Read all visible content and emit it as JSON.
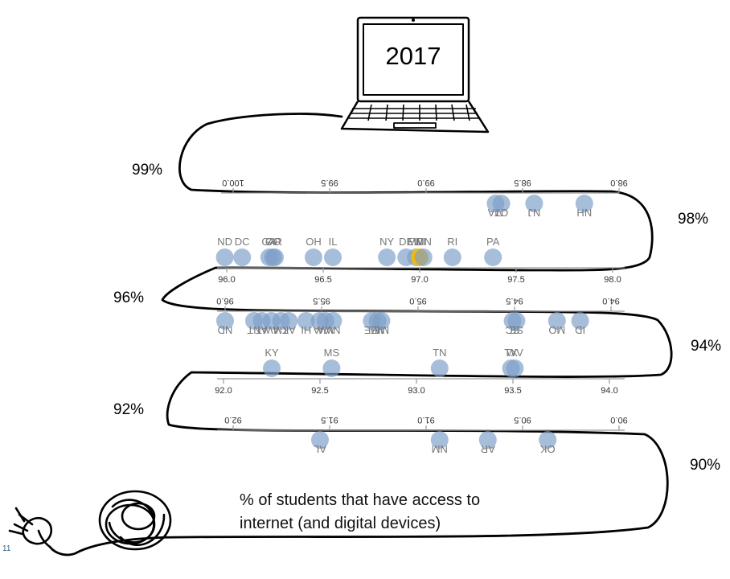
{
  "year": "2017",
  "caption": "% of students that have access to internet (and digital devices)",
  "slide_number": "11",
  "band_labels": [
    "99%",
    "98%",
    "96%",
    "94%",
    "92%",
    "90%"
  ],
  "colors": {
    "dot": "#7d9fc9",
    "dot_highlight": "#f5b800",
    "axis": "#999999",
    "label": "#777777",
    "path": "#000000"
  },
  "chart_data": {
    "type": "scatter",
    "title": "",
    "xlabel": "% of students that have access to internet (and digital devices)",
    "ylabel": "",
    "bands": [
      {
        "range": [
          98.0,
          100.0
        ],
        "flipped": true,
        "ticks": [
          100.0,
          99.5,
          99.0,
          98.5,
          98.0
        ],
        "tick_labels": [
          "100.0",
          "99.5",
          "99.0",
          "98.5",
          "98.0"
        ],
        "points": [
          {
            "label": "MA",
            "value": 98.64
          },
          {
            "label": "CT",
            "value": 98.61
          },
          {
            "label": "NJ",
            "value": 98.44
          },
          {
            "label": "NH",
            "value": 98.18
          }
        ]
      },
      {
        "range": [
          96.0,
          98.0
        ],
        "flipped": false,
        "ticks": [
          96.0,
          96.5,
          97.0,
          97.5,
          98.0
        ],
        "tick_labels": [
          "96.0",
          "96.5",
          "97.0",
          "97.5",
          "98.0"
        ],
        "points": [
          {
            "label": "ND",
            "value": 95.99
          },
          {
            "label": "DC",
            "value": 96.08
          },
          {
            "label": "GA",
            "value": 96.22
          },
          {
            "label": "CO",
            "value": 96.24
          },
          {
            "label": "AR",
            "value": 96.25
          },
          {
            "label": "OH",
            "value": 96.45
          },
          {
            "label": "IL",
            "value": 96.55
          },
          {
            "label": "NY",
            "value": 96.83
          },
          {
            "label": "DE",
            "value": 96.93
          },
          {
            "label": "MD",
            "value": 96.98
          },
          {
            "label": "WI",
            "value": 97.0,
            "highlight": true
          },
          {
            "label": "MN",
            "value": 97.02
          },
          {
            "label": "RI",
            "value": 97.17
          },
          {
            "label": "PA",
            "value": 97.38
          }
        ]
      },
      {
        "range": [
          94.0,
          96.0
        ],
        "flipped": true,
        "ticks": [
          96.0,
          95.5,
          95.0,
          94.5,
          94.0
        ],
        "tick_labels": [
          "96.0",
          "95.5",
          "95.0",
          "94.5",
          "94.0"
        ],
        "points": [
          {
            "label": "ND",
            "value": 96.0
          },
          {
            "label": "NT",
            "value": 95.85
          },
          {
            "label": "AT",
            "value": 95.81
          },
          {
            "label": "AW",
            "value": 95.76
          },
          {
            "label": "TM",
            "value": 95.71
          },
          {
            "label": "AK",
            "value": 95.67
          },
          {
            "label": "HI",
            "value": 95.58
          },
          {
            "label": "VA",
            "value": 95.51
          },
          {
            "label": "WA",
            "value": 95.48
          },
          {
            "label": "NV",
            "value": 95.44
          },
          {
            "label": "ME",
            "value": 95.24
          },
          {
            "label": "NE",
            "value": 95.21
          },
          {
            "label": "ME",
            "value": 95.19
          },
          {
            "label": "SC",
            "value": 94.51
          },
          {
            "label": "SE",
            "value": 94.49
          },
          {
            "label": "MO",
            "value": 94.28
          },
          {
            "label": "ID",
            "value": 94.16
          }
        ]
      },
      {
        "range": [
          92.0,
          94.0
        ],
        "flipped": false,
        "ticks": [
          92.0,
          92.5,
          93.0,
          93.5,
          94.0
        ],
        "tick_labels": [
          "92.0",
          "92.5",
          "93.0",
          "93.5",
          "94.0"
        ],
        "points": [
          {
            "label": "KY",
            "value": 92.25
          },
          {
            "label": "MS",
            "value": 92.56
          },
          {
            "label": "TN",
            "value": 93.12
          },
          {
            "label": "TX",
            "value": 93.49
          },
          {
            "label": "WV",
            "value": 93.51
          }
        ]
      },
      {
        "range": [
          90.0,
          92.0
        ],
        "flipped": true,
        "ticks": [
          92.0,
          91.5,
          91.0,
          90.5,
          90.0
        ],
        "tick_labels": [
          "92.0",
          "91.5",
          "91.0",
          "90.5",
          "90.0"
        ],
        "points": [
          {
            "label": "AL",
            "value": 91.55
          },
          {
            "label": "NM",
            "value": 90.93
          },
          {
            "label": "AR",
            "value": 90.68
          },
          {
            "label": "OK",
            "value": 90.37
          }
        ]
      }
    ]
  }
}
